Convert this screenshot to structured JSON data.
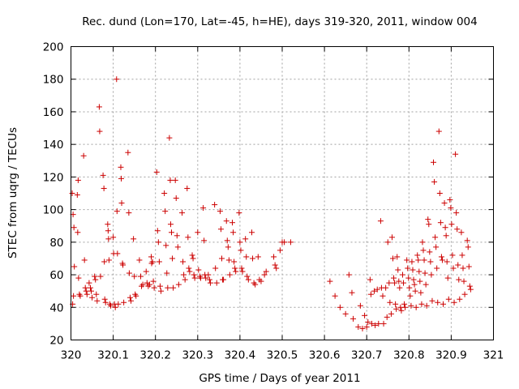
{
  "chart_data": {
    "type": "scatter",
    "title": "Rec. dund (Lon=170, Lat=-45, h=HE), days 319-320, 2011, window 004",
    "xlabel": "GPS time / Days of year 2011",
    "ylabel": "STEC from uqrg / TECUs",
    "xlim": [
      320,
      321
    ],
    "ylim": [
      20,
      200
    ],
    "xticks": [
      "320",
      "320.1",
      "320.2",
      "320.3",
      "320.4",
      "320.5",
      "320.6",
      "320.7",
      "320.8",
      "320.9",
      "321"
    ],
    "yticks": [
      "20",
      "40",
      "60",
      "80",
      "100",
      "120",
      "140",
      "160",
      "180",
      "200"
    ],
    "grid": true,
    "marker": "plus",
    "color": "#cc0000",
    "series": [
      {
        "points": [
          [
            320.003,
            110
          ],
          [
            320.005,
            97
          ],
          [
            320.007,
            89
          ],
          [
            320.008,
            65
          ],
          [
            320.004,
            42
          ],
          [
            320.006,
            47
          ],
          [
            320.015,
            109
          ],
          [
            320.017,
            118
          ],
          [
            320.016,
            86
          ],
          [
            320.018,
            58
          ],
          [
            320.02,
            48
          ],
          [
            320.022,
            47
          ],
          [
            320.03,
            133
          ],
          [
            320.032,
            69
          ],
          [
            320.034,
            52
          ],
          [
            320.036,
            50
          ],
          [
            320.038,
            48
          ],
          [
            320.043,
            55
          ],
          [
            320.046,
            52
          ],
          [
            320.048,
            50
          ],
          [
            320.05,
            46
          ],
          [
            320.056,
            59
          ],
          [
            320.058,
            57
          ],
          [
            320.06,
            48
          ],
          [
            320.062,
            44
          ],
          [
            320.067,
            163
          ],
          [
            320.068,
            148
          ],
          [
            320.07,
            59
          ],
          [
            320.076,
            121
          ],
          [
            320.078,
            113
          ],
          [
            320.079,
            68
          ],
          [
            320.08,
            45
          ],
          [
            320.082,
            43
          ],
          [
            320.087,
            91
          ],
          [
            320.088,
            87
          ],
          [
            320.089,
            82
          ],
          [
            320.09,
            69
          ],
          [
            320.092,
            42
          ],
          [
            320.094,
            41
          ],
          [
            320.1,
            83
          ],
          [
            320.101,
            73
          ],
          [
            320.103,
            42
          ],
          [
            320.105,
            40
          ],
          [
            320.108,
            180
          ],
          [
            320.109,
            99
          ],
          [
            320.11,
            73
          ],
          [
            320.112,
            42
          ],
          [
            320.118,
            126
          ],
          [
            320.119,
            119
          ],
          [
            320.12,
            104
          ],
          [
            320.122,
            67
          ],
          [
            320.123,
            66
          ],
          [
            320.125,
            43
          ],
          [
            320.135,
            135
          ],
          [
            320.137,
            98
          ],
          [
            320.138,
            61
          ],
          [
            320.14,
            46
          ],
          [
            320.142,
            44
          ],
          [
            320.148,
            82
          ],
          [
            320.15,
            59
          ],
          [
            320.152,
            48
          ],
          [
            320.154,
            47
          ],
          [
            320.162,
            69
          ],
          [
            320.165,
            59
          ],
          [
            320.167,
            53
          ],
          [
            320.17,
            54
          ],
          [
            320.178,
            62
          ],
          [
            320.18,
            55
          ],
          [
            320.183,
            53
          ],
          [
            320.186,
            54
          ],
          [
            320.19,
            71
          ],
          [
            320.191,
            67
          ],
          [
            320.193,
            68
          ],
          [
            320.195,
            56
          ],
          [
            320.197,
            52
          ],
          [
            320.203,
            123
          ],
          [
            320.205,
            87
          ],
          [
            320.207,
            80
          ],
          [
            320.209,
            68
          ],
          [
            320.211,
            53
          ],
          [
            320.213,
            50
          ],
          [
            320.221,
            110
          ],
          [
            320.223,
            99
          ],
          [
            320.225,
            78
          ],
          [
            320.227,
            61
          ],
          [
            320.229,
            52
          ],
          [
            320.233,
            144
          ],
          [
            320.235,
            118
          ],
          [
            320.236,
            91
          ],
          [
            320.238,
            86
          ],
          [
            320.24,
            70
          ],
          [
            320.242,
            52
          ],
          [
            320.247,
            118
          ],
          [
            320.249,
            107
          ],
          [
            320.251,
            84
          ],
          [
            320.253,
            77
          ],
          [
            320.255,
            54
          ],
          [
            320.263,
            98
          ],
          [
            320.265,
            68
          ],
          [
            320.267,
            60
          ],
          [
            320.27,
            57
          ],
          [
            320.275,
            113
          ],
          [
            320.277,
            83
          ],
          [
            320.279,
            64
          ],
          [
            320.281,
            62
          ],
          [
            320.287,
            72
          ],
          [
            320.289,
            70
          ],
          [
            320.291,
            60
          ],
          [
            320.293,
            58
          ],
          [
            320.3,
            86
          ],
          [
            320.302,
            63
          ],
          [
            320.305,
            59
          ],
          [
            320.307,
            58
          ],
          [
            320.313,
            101
          ],
          [
            320.315,
            81
          ],
          [
            320.317,
            60
          ],
          [
            320.319,
            58
          ],
          [
            320.325,
            60
          ],
          [
            320.328,
            57
          ],
          [
            320.33,
            55
          ],
          [
            320.34,
            103
          ],
          [
            320.342,
            64
          ],
          [
            320.345,
            55
          ],
          [
            320.353,
            99
          ],
          [
            320.355,
            88
          ],
          [
            320.357,
            70
          ],
          [
            320.359,
            57
          ],
          [
            320.361,
            57
          ],
          [
            320.368,
            93
          ],
          [
            320.37,
            81
          ],
          [
            320.372,
            77
          ],
          [
            320.374,
            69
          ],
          [
            320.376,
            60
          ],
          [
            320.382,
            92
          ],
          [
            320.384,
            86
          ],
          [
            320.386,
            68
          ],
          [
            320.388,
            64
          ],
          [
            320.39,
            62
          ],
          [
            320.398,
            98
          ],
          [
            320.4,
            80
          ],
          [
            320.402,
            75
          ],
          [
            320.404,
            64
          ],
          [
            320.406,
            62
          ],
          [
            320.413,
            82
          ],
          [
            320.415,
            71
          ],
          [
            320.417,
            59
          ],
          [
            320.42,
            57
          ],
          [
            320.428,
            86
          ],
          [
            320.43,
            70
          ],
          [
            320.433,
            55
          ],
          [
            320.436,
            54
          ],
          [
            320.443,
            71
          ],
          [
            320.446,
            57
          ],
          [
            320.45,
            56
          ],
          [
            320.458,
            60
          ],
          [
            320.462,
            62
          ],
          [
            320.48,
            71
          ],
          [
            320.483,
            66
          ],
          [
            320.486,
            64
          ],
          [
            320.495,
            75
          ],
          [
            320.5,
            80
          ],
          [
            320.505,
            80
          ],
          [
            320.52,
            80
          ]
        ]
      },
      {
        "points": [
          [
            320.613,
            56
          ],
          [
            320.625,
            47
          ],
          [
            320.637,
            40
          ],
          [
            320.65,
            36
          ],
          [
            320.658,
            60
          ],
          [
            320.665,
            49
          ],
          [
            320.668,
            33
          ],
          [
            320.68,
            28
          ],
          [
            320.685,
            41
          ],
          [
            320.69,
            27
          ],
          [
            320.695,
            35
          ],
          [
            320.7,
            28
          ],
          [
            320.703,
            31
          ],
          [
            320.708,
            57
          ],
          [
            320.71,
            48
          ],
          [
            320.712,
            30
          ],
          [
            320.718,
            50
          ],
          [
            320.72,
            29
          ],
          [
            320.725,
            51
          ],
          [
            320.728,
            30
          ],
          [
            320.733,
            93
          ],
          [
            320.735,
            52
          ],
          [
            320.738,
            47
          ],
          [
            320.74,
            30
          ],
          [
            320.745,
            52
          ],
          [
            320.748,
            34
          ],
          [
            320.75,
            80
          ],
          [
            320.753,
            55
          ],
          [
            320.755,
            43
          ],
          [
            320.758,
            36
          ],
          [
            320.76,
            83
          ],
          [
            320.762,
            70
          ],
          [
            320.764,
            58
          ],
          [
            320.766,
            55
          ],
          [
            320.768,
            42
          ],
          [
            320.77,
            39
          ],
          [
            320.772,
            71
          ],
          [
            320.774,
            63
          ],
          [
            320.776,
            56
          ],
          [
            320.778,
            52
          ],
          [
            320.78,
            40
          ],
          [
            320.782,
            38
          ],
          [
            320.785,
            60
          ],
          [
            320.787,
            55
          ],
          [
            320.789,
            42
          ],
          [
            320.791,
            40
          ],
          [
            320.795,
            69
          ],
          [
            320.797,
            64
          ],
          [
            320.799,
            58
          ],
          [
            320.801,
            52
          ],
          [
            320.803,
            47
          ],
          [
            320.805,
            41
          ],
          [
            320.807,
            68
          ],
          [
            320.809,
            63
          ],
          [
            320.811,
            57
          ],
          [
            320.813,
            54
          ],
          [
            320.815,
            50
          ],
          [
            320.817,
            40
          ],
          [
            320.82,
            72
          ],
          [
            320.822,
            69
          ],
          [
            320.824,
            62
          ],
          [
            320.826,
            56
          ],
          [
            320.828,
            49
          ],
          [
            320.83,
            42
          ],
          [
            320.832,
            80
          ],
          [
            320.834,
            75
          ],
          [
            320.836,
            69
          ],
          [
            320.838,
            61
          ],
          [
            320.84,
            54
          ],
          [
            320.842,
            41
          ],
          [
            320.845,
            94
          ],
          [
            320.847,
            91
          ],
          [
            320.849,
            74
          ],
          [
            320.851,
            68
          ],
          [
            320.853,
            60
          ],
          [
            320.855,
            44
          ],
          [
            320.858,
            129
          ],
          [
            320.86,
            117
          ],
          [
            320.862,
            83
          ],
          [
            320.864,
            77
          ],
          [
            320.866,
            64
          ],
          [
            320.868,
            43
          ],
          [
            320.871,
            148
          ],
          [
            320.873,
            110
          ],
          [
            320.875,
            92
          ],
          [
            320.877,
            71
          ],
          [
            320.879,
            69
          ],
          [
            320.881,
            42
          ],
          [
            320.884,
            104
          ],
          [
            320.886,
            89
          ],
          [
            320.888,
            84
          ],
          [
            320.89,
            68
          ],
          [
            320.892,
            58
          ],
          [
            320.894,
            45
          ],
          [
            320.897,
            106
          ],
          [
            320.899,
            101
          ],
          [
            320.901,
            91
          ],
          [
            320.903,
            72
          ],
          [
            320.905,
            64
          ],
          [
            320.907,
            43
          ],
          [
            320.91,
            134
          ],
          [
            320.912,
            98
          ],
          [
            320.914,
            88
          ],
          [
            320.916,
            66
          ],
          [
            320.918,
            57
          ],
          [
            320.92,
            45
          ],
          [
            320.924,
            86
          ],
          [
            320.926,
            72
          ],
          [
            320.928,
            64
          ],
          [
            320.93,
            56
          ],
          [
            320.932,
            48
          ],
          [
            320.938,
            81
          ],
          [
            320.94,
            77
          ],
          [
            320.942,
            65
          ],
          [
            320.944,
            53
          ],
          [
            320.946,
            51
          ]
        ]
      }
    ]
  }
}
